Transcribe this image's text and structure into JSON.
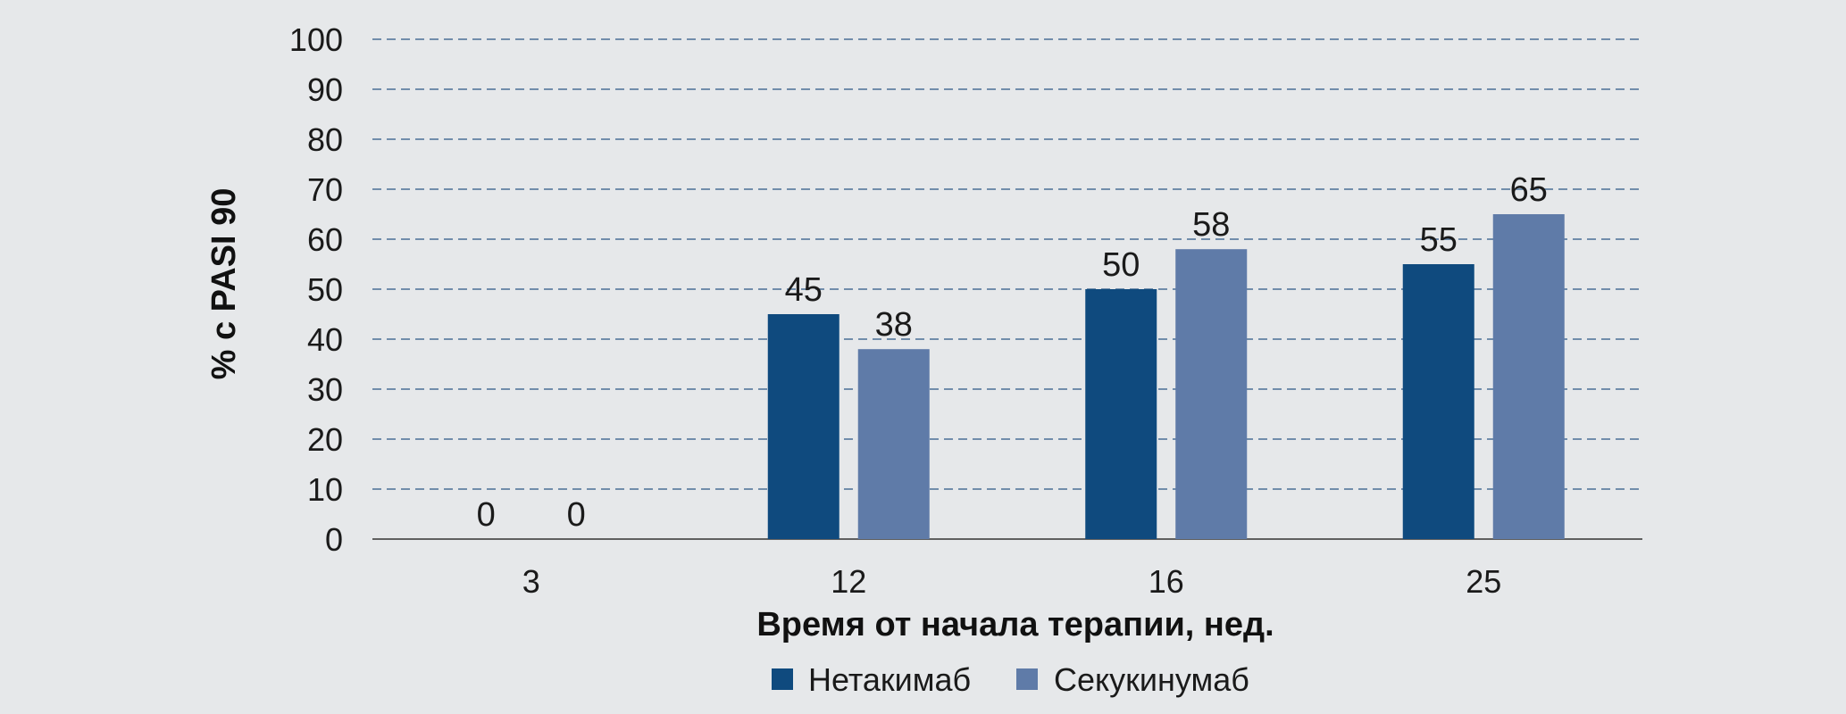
{
  "chart_data": {
    "type": "bar",
    "categories": [
      "3",
      "12",
      "16",
      "25"
    ],
    "series": [
      {
        "name": "Нетакимаб",
        "values": [
          0,
          45,
          50,
          55
        ],
        "color": "#0f4a7e"
      },
      {
        "name": "Секукинумаб",
        "values": [
          0,
          38,
          58,
          65
        ],
        "color": "#5f7ba8"
      }
    ],
    "xlabel": "Время от начала терапии, нед.",
    "ylabel": "% с PASI 90",
    "ylim": [
      0,
      100
    ],
    "yticks": [
      "0",
      "10",
      "20",
      "30",
      "40",
      "50",
      "60",
      "70",
      "80",
      "90",
      "100"
    ],
    "grid": true,
    "grid_color": "#4a6f96",
    "legend_position": "bottom-center"
  }
}
